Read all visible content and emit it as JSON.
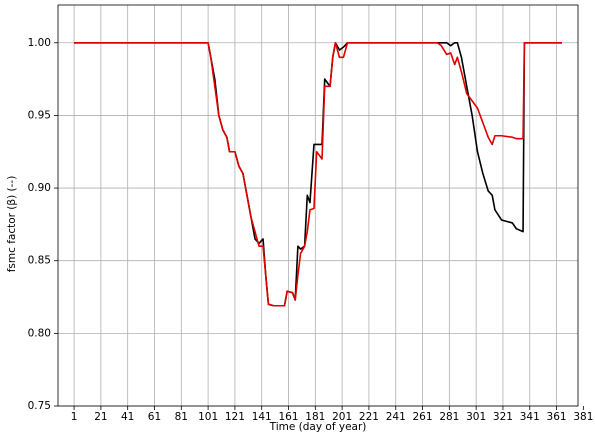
{
  "chart_data": {
    "type": "line",
    "xlabel": "Time (day of year)",
    "ylabel": "fsmc factor (β) (--)",
    "x": [
      1,
      98,
      101,
      103,
      106,
      109,
      112,
      115,
      117,
      121,
      124,
      127,
      130,
      133,
      136,
      139,
      142,
      144,
      146,
      150,
      158,
      160,
      164,
      166,
      168,
      170,
      173,
      175,
      177,
      180,
      182,
      186,
      188,
      192,
      194,
      196,
      199,
      202,
      205,
      272,
      275,
      279,
      282,
      285,
      287,
      290,
      294,
      298,
      302,
      306,
      310,
      313,
      315,
      320,
      328,
      331,
      336,
      337,
      365
    ],
    "series": [
      {
        "color": "#000000",
        "values": [
          1.0,
          1.0,
          1.0,
          0.99,
          0.975,
          0.95,
          0.94,
          0.935,
          0.925,
          0.925,
          0.915,
          0.91,
          0.895,
          0.88,
          0.865,
          0.862,
          0.865,
          0.84,
          0.82,
          0.819,
          0.819,
          0.829,
          0.828,
          0.823,
          0.86,
          0.858,
          0.86,
          0.895,
          0.89,
          0.93,
          0.93,
          0.93,
          0.975,
          0.97,
          0.99,
          1.0,
          0.995,
          0.997,
          1.0,
          1.0,
          1.0,
          1.0,
          0.998,
          1.0,
          1.0,
          0.99,
          0.97,
          0.95,
          0.925,
          0.91,
          0.898,
          0.895,
          0.885,
          0.878,
          0.876,
          0.872,
          0.87,
          1.0,
          1.0
        ]
      },
      {
        "color": "#e00000",
        "values": [
          1.0,
          1.0,
          1.0,
          0.99,
          0.97,
          0.95,
          0.94,
          0.935,
          0.925,
          0.925,
          0.915,
          0.91,
          0.895,
          0.88,
          0.87,
          0.86,
          0.86,
          0.84,
          0.82,
          0.819,
          0.819,
          0.829,
          0.828,
          0.823,
          0.84,
          0.855,
          0.86,
          0.87,
          0.885,
          0.886,
          0.925,
          0.92,
          0.97,
          0.97,
          0.99,
          1.0,
          0.99,
          0.99,
          1.0,
          1.0,
          0.998,
          0.992,
          0.993,
          0.985,
          0.99,
          0.98,
          0.965,
          0.96,
          0.955,
          0.945,
          0.935,
          0.93,
          0.936,
          0.936,
          0.935,
          0.934,
          0.934,
          1.0,
          1.0
        ]
      }
    ],
    "xlim": [
      -11,
      377
    ],
    "xticks": [
      1,
      21,
      41,
      61,
      81,
      101,
      121,
      141,
      161,
      181,
      201,
      221,
      241,
      261,
      281,
      301,
      321,
      341,
      361,
      381
    ],
    "ylim": [
      0.75,
      1.026
    ],
    "yticks": [
      0.75,
      {
        "value": 0.8,
        "label": "0.80"
      },
      0.85,
      {
        "value": 0.9,
        "label": "0.90"
      },
      0.95,
      {
        "value": 1.0,
        "label": "1.00"
      }
    ],
    "grid": true
  }
}
